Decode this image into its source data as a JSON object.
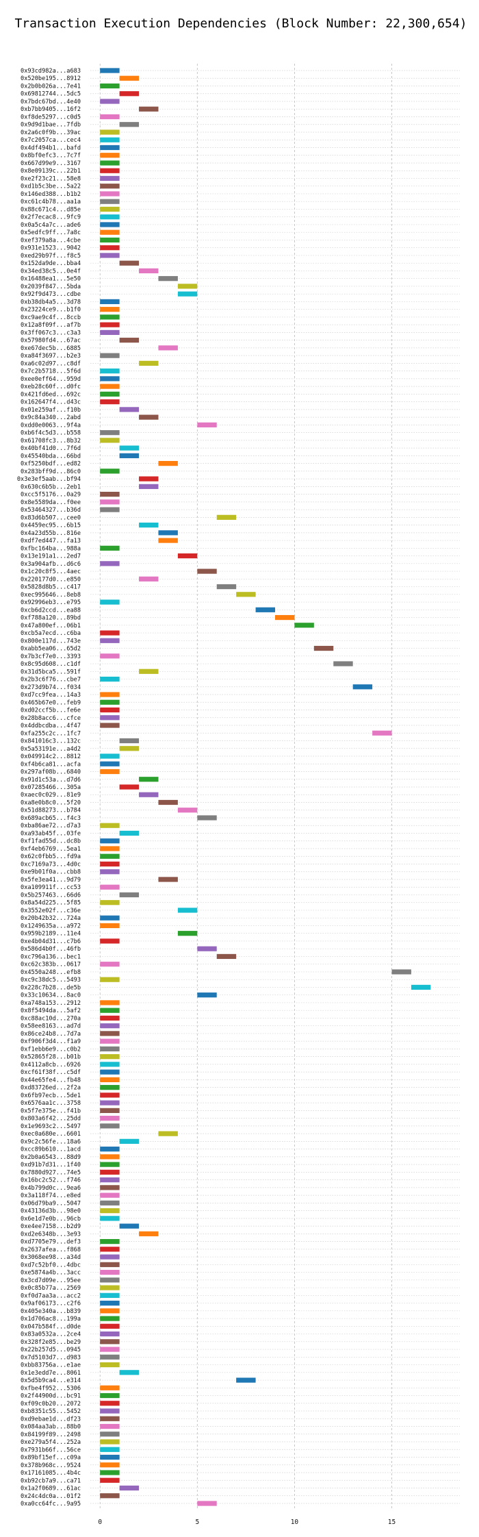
{
  "chart_data": {
    "type": "bar",
    "orientation": "horizontal",
    "title": "Transaction Execution Dependencies (Block Number: 22,300,654)",
    "xlabel": "",
    "ylabel": "",
    "xlim": [
      -0.5,
      18.5
    ],
    "xticks": [
      0,
      5,
      10,
      15
    ],
    "grid": true,
    "bar_width": 1,
    "palette": [
      "#1f77b4",
      "#ff7f0e",
      "#2ca02c",
      "#d62728",
      "#9467bd",
      "#8c564b",
      "#e377c2",
      "#7f7f7f",
      "#bcbd22",
      "#17becf"
    ],
    "transactions": [
      {
        "label": "0x93cd982a...a683",
        "start": 0
      },
      {
        "label": "0x520be195...8912",
        "start": 1
      },
      {
        "label": "0x2b0b026a...7e41",
        "start": 0
      },
      {
        "label": "0x69812744...5dc5",
        "start": 1
      },
      {
        "label": "0x7bdc67bd...4e40",
        "start": 0
      },
      {
        "label": "0xb7bb9405...16f2",
        "start": 2
      },
      {
        "label": "0xf8de5297...c0d5",
        "start": 0
      },
      {
        "label": "0x9d9d1bae...7fdb",
        "start": 1
      },
      {
        "label": "0x2a6c0f9b...39ac",
        "start": 0
      },
      {
        "label": "0x7c2057ca...cec4",
        "start": 0
      },
      {
        "label": "0x4df494b1...bafd",
        "start": 0
      },
      {
        "label": "0x8bf0efc3...7c7f",
        "start": 0
      },
      {
        "label": "0x667d99e9...3167",
        "start": 0
      },
      {
        "label": "0x8e09139c...22b1",
        "start": 0
      },
      {
        "label": "0xe2f23c21...58e8",
        "start": 0
      },
      {
        "label": "0xd1b5c3be...5a22",
        "start": 0
      },
      {
        "label": "0x146ed388...b1b2",
        "start": 0
      },
      {
        "label": "0xc61c4b78...aa1a",
        "start": 0
      },
      {
        "label": "0x88c671c4...d85e",
        "start": 0
      },
      {
        "label": "0x2f7ecac8...9fc9",
        "start": 0
      },
      {
        "label": "0x0a5c4a7c...ade6",
        "start": 0
      },
      {
        "label": "0x5edfc9ff...7a8c",
        "start": 0
      },
      {
        "label": "0xef379a8a...4cbe",
        "start": 0
      },
      {
        "label": "0x931e1523...9042",
        "start": 0
      },
      {
        "label": "0xed29b97f...f8c5",
        "start": 0
      },
      {
        "label": "0x152da9de...bba4",
        "start": 1
      },
      {
        "label": "0x34ed38c5...0e4f",
        "start": 2
      },
      {
        "label": "0x16488ea1...5e50",
        "start": 3
      },
      {
        "label": "0x2039f847...5bda",
        "start": 4
      },
      {
        "label": "0x92f9d473...cdbe",
        "start": 4
      },
      {
        "label": "0xb38db4a5...3d78",
        "start": 0
      },
      {
        "label": "0x23224ce9...b1f0",
        "start": 0
      },
      {
        "label": "0xc9ae9c4f...8ccb",
        "start": 0
      },
      {
        "label": "0x12a8f09f...af7b",
        "start": 0
      },
      {
        "label": "0x3ff067c3...c3a3",
        "start": 0
      },
      {
        "label": "0x57980fd4...67ac",
        "start": 1
      },
      {
        "label": "0xe67dec5b...6885",
        "start": 3
      },
      {
        "label": "0xa84f3697...b2e3",
        "start": 0
      },
      {
        "label": "0xa6c02d97...c8df",
        "start": 2
      },
      {
        "label": "0x7c2b5718...5f6d",
        "start": 0
      },
      {
        "label": "0xee0eff64...959d",
        "start": 0
      },
      {
        "label": "0xeb28c60f...d0fc",
        "start": 0
      },
      {
        "label": "0x421fd6ed...692c",
        "start": 0
      },
      {
        "label": "0x162647f4...d43c",
        "start": 0
      },
      {
        "label": "0x01e259af...f10b",
        "start": 1
      },
      {
        "label": "0x9c84a340...2abd",
        "start": 2
      },
      {
        "label": "0xdd0e0063...9f4a",
        "start": 5
      },
      {
        "label": "0xb6f4c5d3...b558",
        "start": 0
      },
      {
        "label": "0x61708fc3...8b32",
        "start": 0
      },
      {
        "label": "0x40bf41d0...7f6d",
        "start": 1
      },
      {
        "label": "0x45540bda...66bd",
        "start": 1
      },
      {
        "label": "0xf5250bdf...ed82",
        "start": 3
      },
      {
        "label": "0x283bff9d...86c0",
        "start": 0
      },
      {
        "label": "0x3e3ef5aab...bf94",
        "start": 2
      },
      {
        "label": "0x630c6b5b...2eb1",
        "start": 2
      },
      {
        "label": "0xcc5f5176...0a29",
        "start": 0
      },
      {
        "label": "0x8e5589da...f0ee",
        "start": 0
      },
      {
        "label": "0x53464327...b36d",
        "start": 0
      },
      {
        "label": "0x83d6b507...cee0",
        "start": 6
      },
      {
        "label": "0x4459ec95...6b15",
        "start": 2
      },
      {
        "label": "0x4a23d55b...816e",
        "start": 3
      },
      {
        "label": "0xdf7ed447...fa13",
        "start": 3
      },
      {
        "label": "0xfbc164ba...988a",
        "start": 0
      },
      {
        "label": "0x13e191a1...2ed7",
        "start": 4
      },
      {
        "label": "0x3a904afb...d6c6",
        "start": 0
      },
      {
        "label": "0x1c20c8f5...4aec",
        "start": 5
      },
      {
        "label": "0x220177d0...e850",
        "start": 2
      },
      {
        "label": "0x5828d8b5...c417",
        "start": 6
      },
      {
        "label": "0xec995646...8eb8",
        "start": 7
      },
      {
        "label": "0x92996eb3...e795",
        "start": 0
      },
      {
        "label": "0xcb6d2ccd...ea88",
        "start": 8
      },
      {
        "label": "0xf788a120...89bd",
        "start": 9
      },
      {
        "label": "0x47a800ef...06b1",
        "start": 10
      },
      {
        "label": "0xcb5a7ecd...c6ba",
        "start": 0
      },
      {
        "label": "0x800e117d...743e",
        "start": 0
      },
      {
        "label": "0xabb5ea06...65d2",
        "start": 11
      },
      {
        "label": "0x7b3cf7e0...3393",
        "start": 0
      },
      {
        "label": "0x8c95d608...c1df",
        "start": 12
      },
      {
        "label": "0x31d5bca5...591f",
        "start": 2
      },
      {
        "label": "0x2b3c6f76...cbe7",
        "start": 0
      },
      {
        "label": "0x273d9b74...f034",
        "start": 13
      },
      {
        "label": "0xd7cc9fea...14a3",
        "start": 0
      },
      {
        "label": "0x465b67e0...feb9",
        "start": 0
      },
      {
        "label": "0xd02ccf5b...fe6e",
        "start": 0
      },
      {
        "label": "0x28b8acc6...cfce",
        "start": 0
      },
      {
        "label": "0x4ddbcdba...4f47",
        "start": 0
      },
      {
        "label": "0xfa255c2c...1fc7",
        "start": 14
      },
      {
        "label": "0x841016c3...132c",
        "start": 1
      },
      {
        "label": "0x5a53191e...a4d2",
        "start": 1
      },
      {
        "label": "0x049914c2...8812",
        "start": 0
      },
      {
        "label": "0xf4b6ca81...acfa",
        "start": 0
      },
      {
        "label": "0x297af08b...6840",
        "start": 0
      },
      {
        "label": "0x91d1c53a...d7d6",
        "start": 2
      },
      {
        "label": "0x07285466...305a",
        "start": 1
      },
      {
        "label": "0xaec0c029...81e9",
        "start": 2
      },
      {
        "label": "0xa8e0b8c0...5f20",
        "start": 3
      },
      {
        "label": "0x51d88273...b784",
        "start": 4
      },
      {
        "label": "0x689acb65...f4c3",
        "start": 5
      },
      {
        "label": "0xba86ae72...d7a3",
        "start": 0
      },
      {
        "label": "0xa93ab45f...03fe",
        "start": 1
      },
      {
        "label": "0xf1fad55d...dc8b",
        "start": 0
      },
      {
        "label": "0xf4eb6769...5ea1",
        "start": 0
      },
      {
        "label": "0x62c0fbb5...fd9a",
        "start": 0
      },
      {
        "label": "0xc7169a73...4d0c",
        "start": 0
      },
      {
        "label": "0xe9b01f0a...cbb8",
        "start": 0
      },
      {
        "label": "0x5fe3ea41...9d79",
        "start": 3
      },
      {
        "label": "0xa109911f...cc53",
        "start": 0
      },
      {
        "label": "0x5b257463...66d6",
        "start": 1
      },
      {
        "label": "0x8a54d225...5f85",
        "start": 0
      },
      {
        "label": "0x3552e02f...c36e",
        "start": 4
      },
      {
        "label": "0x20b42b32...724a",
        "start": 0
      },
      {
        "label": "0x1249635a...a972",
        "start": 0
      },
      {
        "label": "0x959b2189...11e4",
        "start": 4
      },
      {
        "label": "0xe4b04d31...c7b6",
        "start": 0
      },
      {
        "label": "0x586d4b0f...46fb",
        "start": 5
      },
      {
        "label": "0xc796a136...bec1",
        "start": 6
      },
      {
        "label": "0xc62c383b...0617",
        "start": 0
      },
      {
        "label": "0x4550a248...efb8",
        "start": 15
      },
      {
        "label": "0xc9c38dc5...5493",
        "start": 0
      },
      {
        "label": "0x228c7b28...de5b",
        "start": 16
      },
      {
        "label": "0x33c10634...8ac0",
        "start": 5
      },
      {
        "label": "0xa748a153...2912",
        "start": 0
      },
      {
        "label": "0x8f5494da...5af2",
        "start": 0
      },
      {
        "label": "0xc88ac10d...270a",
        "start": 0
      },
      {
        "label": "0x58ee8163...ad7d",
        "start": 0
      },
      {
        "label": "0x86ce24b8...7d7a",
        "start": 0
      },
      {
        "label": "0xf906f3d4...f1a9",
        "start": 0
      },
      {
        "label": "0xf1ebb6e9...c0b2",
        "start": 0
      },
      {
        "label": "0x52865f28...b01b",
        "start": 0
      },
      {
        "label": "0x4112a8cb...6926",
        "start": 0
      },
      {
        "label": "0xcf61f38f...c5df",
        "start": 0
      },
      {
        "label": "0x44e65fe4...fb48",
        "start": 0
      },
      {
        "label": "0xd83726ed...2f2a",
        "start": 0
      },
      {
        "label": "0x6fb97ecb...5de1",
        "start": 0
      },
      {
        "label": "0x6576aa1c...3758",
        "start": 0
      },
      {
        "label": "0x5f7e375e...f41b",
        "start": 0
      },
      {
        "label": "0x803a6f42...25dd",
        "start": 0
      },
      {
        "label": "0x1e9693c2...5497",
        "start": 0
      },
      {
        "label": "0xec0a680e...6601",
        "start": 3
      },
      {
        "label": "0x9c2c56fe...18a6",
        "start": 1
      },
      {
        "label": "0xcc89b610...1acd",
        "start": 0
      },
      {
        "label": "0x2b0a6543...88d9",
        "start": 0
      },
      {
        "label": "0xd91b7d31...1f40",
        "start": 0
      },
      {
        "label": "0x7880d927...74e5",
        "start": 0
      },
      {
        "label": "0x16bc2c52...f746",
        "start": 0
      },
      {
        "label": "0x4b799d0c...9ea6",
        "start": 0
      },
      {
        "label": "0x3a118f74...e8ed",
        "start": 0
      },
      {
        "label": "0x06d79ba9...5047",
        "start": 0
      },
      {
        "label": "0x43136d3b...98e0",
        "start": 0
      },
      {
        "label": "0x6e1d7e0b...96cb",
        "start": 0
      },
      {
        "label": "0xe4ee7158...b2d9",
        "start": 1
      },
      {
        "label": "0xd2e6348b...3e93",
        "start": 2
      },
      {
        "label": "0xd7705e79...def3",
        "start": 0
      },
      {
        "label": "0x2637afea...f868",
        "start": 0
      },
      {
        "label": "0x3068ee98...a34d",
        "start": 0
      },
      {
        "label": "0xd7c52bf0...4dbc",
        "start": 0
      },
      {
        "label": "0xe5874a4b...3acc",
        "start": 0
      },
      {
        "label": "0x3cd7d09e...95ee",
        "start": 0
      },
      {
        "label": "0x0c85b77a...2569",
        "start": 0
      },
      {
        "label": "0xf0d7aa3a...acc2",
        "start": 0
      },
      {
        "label": "0x9af06173...c2f6",
        "start": 0
      },
      {
        "label": "0x405e340a...b839",
        "start": 0
      },
      {
        "label": "0x1d706ac8...199a",
        "start": 0
      },
      {
        "label": "0x047b584f...d0de",
        "start": 0
      },
      {
        "label": "0x83a0532a...2ce4",
        "start": 0
      },
      {
        "label": "0x328f2e85...be29",
        "start": 0
      },
      {
        "label": "0x22b257d5...0945",
        "start": 0
      },
      {
        "label": "0x7d5103d7...d983",
        "start": 0
      },
      {
        "label": "0xbb83756a...e1ae",
        "start": 0
      },
      {
        "label": "0x1e3edd7e...8061",
        "start": 1
      },
      {
        "label": "0x5d5b9ca4...e314",
        "start": 7
      },
      {
        "label": "0xfbe4f952...5306",
        "start": 0
      },
      {
        "label": "0x2f44900d...bc91",
        "start": 0
      },
      {
        "label": "0xf09c0b20...2072",
        "start": 0
      },
      {
        "label": "0xb8351c55...5452",
        "start": 0
      },
      {
        "label": "0xd9ebae1d...df23",
        "start": 0
      },
      {
        "label": "0x084aa3ab...88b0",
        "start": 0
      },
      {
        "label": "0x84199f89...2498",
        "start": 0
      },
      {
        "label": "0xe279a5f4...252a",
        "start": 0
      },
      {
        "label": "0x7931b66f...56ce",
        "start": 0
      },
      {
        "label": "0x89bf15ef...c09a",
        "start": 0
      },
      {
        "label": "0x378b968c...9524",
        "start": 0
      },
      {
        "label": "0x17161085...4b4c",
        "start": 0
      },
      {
        "label": "0xb92cb7a9...ca71",
        "start": 0
      },
      {
        "label": "0x1a2f0689...61ac",
        "start": 1
      },
      {
        "label": "0x24c4dc0a...01f2",
        "start": 0
      },
      {
        "label": "0xa0cc64fc...9a95",
        "start": 5
      }
    ]
  }
}
